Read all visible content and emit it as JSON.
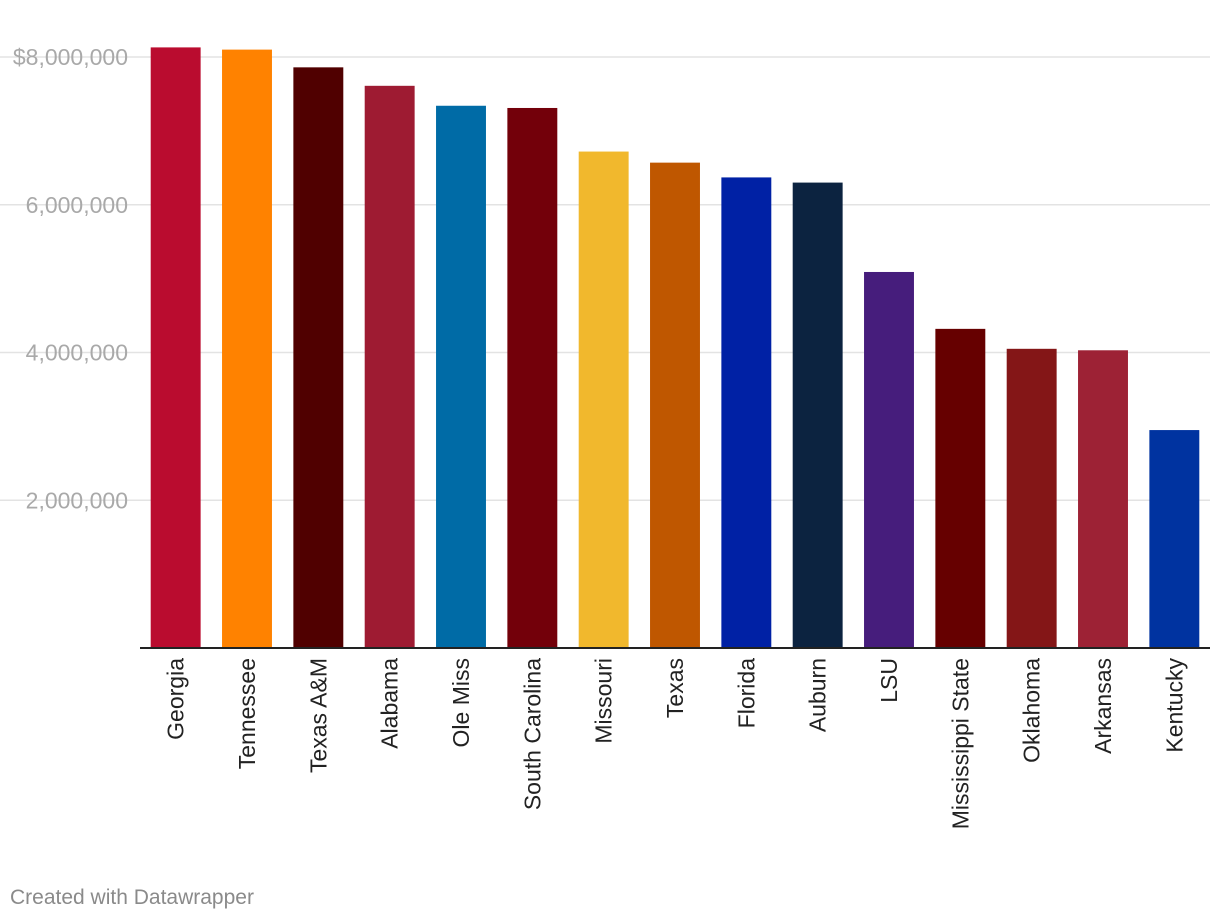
{
  "chart_data": {
    "type": "bar",
    "title": "",
    "xlabel": "",
    "ylabel": "",
    "ylim": [
      0,
      8000000
    ],
    "grid": true,
    "yticks": [
      {
        "value": 2000000,
        "label": "2,000,000"
      },
      {
        "value": 4000000,
        "label": "4,000,000"
      },
      {
        "value": 6000000,
        "label": "6,000,000"
      },
      {
        "value": 8000000,
        "label": "$8,000,000"
      }
    ],
    "categories": [
      "Georgia",
      "Tennessee",
      "Texas A&M",
      "Alabama",
      "Ole Miss",
      "South Carolina",
      "Missouri",
      "Texas",
      "Florida",
      "Auburn",
      "LSU",
      "Mississippi State",
      "Oklahoma",
      "Arkansas",
      "Kentucky"
    ],
    "values": [
      8130000,
      8100000,
      7860000,
      7610000,
      7340000,
      7310000,
      6720000,
      6570000,
      6370000,
      6300000,
      5090000,
      4320000,
      4050000,
      4030000,
      2950000
    ],
    "colors": [
      "#ba0c2f",
      "#ff8200",
      "#500000",
      "#9e1b32",
      "#006ba6",
      "#73000a",
      "#f1b82d",
      "#bf5700",
      "#0021a5",
      "#0c2340",
      "#461d7c",
      "#660000",
      "#841617",
      "#9d2235",
      "#0033a0"
    ]
  },
  "footer": {
    "credit": "Created with Datawrapper"
  }
}
